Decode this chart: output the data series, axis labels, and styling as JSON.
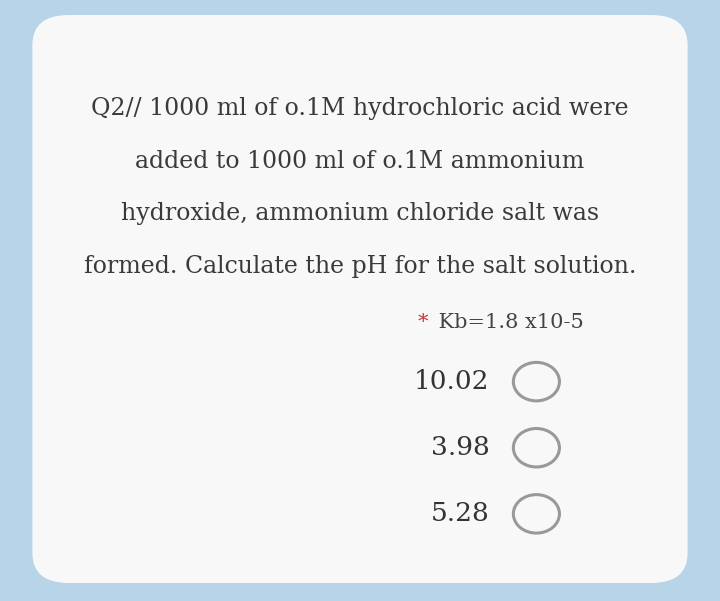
{
  "bg_color": "#b8d4e8",
  "card_color": "#f8f8f8",
  "line1": "Q2// 1000 ml of o.1M hydrochloric acid were",
  "line2": "added to 1000 ml of o.1M ammonium",
  "line3": "hydroxide, ammonium chloride salt was",
  "line4": "formed. Calculate the pH for the salt solution.",
  "kb_star": "*",
  "kb_rest": " Kb=1.8 x10-5",
  "kb_star_color": "#cc3333",
  "kb_text_color": "#444444",
  "options": [
    "10.02",
    "3.98",
    "5.28"
  ],
  "option_color": "#333333",
  "circle_edge_color": "#999999",
  "text_color": "#3a3a3a",
  "font_size_question": 17,
  "font_size_kb": 15,
  "font_size_options": 19
}
